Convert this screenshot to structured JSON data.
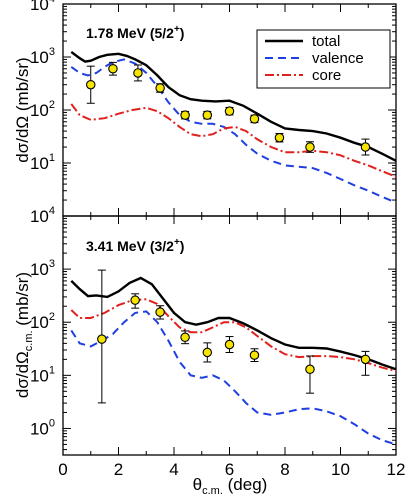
{
  "figure": {
    "x_axis_label": "θc.m. (deg)",
    "x_axis_label_main": "θ",
    "x_axis_label_sub": "c.m.",
    "x_axis_label_unit": " (deg)"
  },
  "legend": [
    {
      "label": "total",
      "color": "#000000",
      "dash": "solid"
    },
    {
      "label": "valence",
      "color": "#1f3fe0",
      "dash": "dashed"
    },
    {
      "label": "core",
      "color": "#e0201c",
      "dash": "dashdot"
    }
  ],
  "colors": {
    "total": "#000000",
    "valence": "#1f3fe0",
    "core": "#e0201c",
    "marker_fill": "#f5e400",
    "marker_edge": "#000000"
  },
  "chart_data": [
    {
      "type": "line",
      "panel": "top",
      "title": "1.78 MeV (5/2+)",
      "title_main": "1.78 MeV (5/2",
      "title_sup": "+",
      "title_close": ")",
      "ylabel": "dσ/dΩ (mb/sr)",
      "ylabel_main": "dσ/dΩ",
      "ylabel_sub": "",
      "ylabel_unit": " (mb/sr)",
      "xlim": [
        0,
        12
      ],
      "ylim_log10": [
        0,
        4
      ],
      "yscale": "log",
      "x_ticks": [
        0,
        2,
        4,
        6,
        8,
        10,
        12
      ],
      "y_ticks": [
        "10^0",
        "10^1",
        "10^2",
        "10^3",
        "10^4"
      ],
      "y_tick_labels_shown": [
        "10^1",
        "10^2",
        "10^3",
        "10^4"
      ],
      "legend_position": "top-right",
      "series": [
        {
          "name": "total",
          "x": [
            0.3,
            0.6,
            0.8,
            1.0,
            1.3,
            1.6,
            2.0,
            2.3,
            2.6,
            3.0,
            3.4,
            3.8,
            4.2,
            4.6,
            5.0,
            5.5,
            6.0,
            6.5,
            7.0,
            7.5,
            8.0,
            8.5,
            9.0,
            9.5,
            10.0,
            10.5,
            11.0,
            11.5,
            12.0
          ],
          "y": [
            1250,
            950,
            820,
            850,
            1000,
            1100,
            1150,
            1050,
            900,
            700,
            450,
            270,
            190,
            160,
            150,
            145,
            150,
            120,
            85,
            60,
            45,
            42,
            40,
            36,
            30,
            24,
            20,
            15,
            11
          ]
        },
        {
          "name": "valence",
          "x": [
            0.3,
            0.6,
            0.9,
            1.2,
            1.5,
            1.8,
            2.2,
            2.6,
            3.0,
            3.4,
            3.8,
            4.2,
            4.6,
            5.0,
            5.4,
            5.8,
            6.2,
            6.6,
            7.0,
            7.5,
            8.0,
            8.5,
            9.0,
            9.5,
            10.0,
            10.5,
            11.0,
            11.5,
            12.0
          ],
          "y": [
            650,
            500,
            450,
            500,
            650,
            800,
            900,
            750,
            500,
            280,
            140,
            80,
            60,
            55,
            55,
            48,
            35,
            22,
            15,
            11,
            9,
            8.5,
            8,
            6.5,
            5,
            3.8,
            3,
            2.3,
            1.8
          ]
        },
        {
          "name": "core",
          "x": [
            0.3,
            0.6,
            1.0,
            1.5,
            2.0,
            2.5,
            3.0,
            3.4,
            3.8,
            4.2,
            4.6,
            5.0,
            5.4,
            5.8,
            6.2,
            6.6,
            7.0,
            7.5,
            8.0,
            8.5,
            9.0,
            9.5,
            10.0,
            10.5,
            11.0,
            11.5,
            12.0
          ],
          "y": [
            130,
            80,
            65,
            70,
            85,
            100,
            110,
            95,
            70,
            48,
            35,
            32,
            35,
            45,
            48,
            40,
            28,
            20,
            16,
            16,
            17,
            16,
            14,
            11,
            9,
            7,
            5.5
          ]
        },
        {
          "name": "data",
          "x": [
            1.0,
            1.8,
            2.7,
            3.5,
            4.4,
            5.2,
            6.0,
            6.9,
            7.8,
            8.9,
            10.9
          ],
          "y": [
            300,
            600,
            500,
            260,
            80,
            80,
            95,
            68,
            30,
            20,
            20
          ],
          "yerr": [
            0.35,
            0.12,
            0.15,
            0.08,
            0.07,
            0.07,
            0.07,
            0.07,
            0.08,
            0.1,
            0.15
          ]
        }
      ]
    },
    {
      "type": "line",
      "panel": "bottom",
      "title": "3.41 MeV (3/2+)",
      "title_main": "3.41 MeV (3/2",
      "title_sup": "+",
      "title_close": ")",
      "ylabel": "dσ/dΩc.m. (mb/sr)",
      "ylabel_main": "dσ/dΩ",
      "ylabel_sub": "c.m.",
      "ylabel_unit": " (mb/sr)",
      "xlim": [
        0,
        12
      ],
      "ylim_log10": [
        -0.5,
        4
      ],
      "yscale": "log",
      "x_ticks": [
        0,
        2,
        4,
        6,
        8,
        10,
        12
      ],
      "y_ticks": [
        "10^0",
        "10^1",
        "10^2",
        "10^3",
        "10^4"
      ],
      "y_tick_labels_shown": [
        "10^0",
        "10^1",
        "10^2",
        "10^3",
        "10^4"
      ],
      "series": [
        {
          "name": "total",
          "x": [
            0.3,
            0.6,
            0.9,
            1.2,
            1.6,
            2.0,
            2.4,
            2.8,
            3.2,
            3.6,
            4.0,
            4.4,
            4.8,
            5.2,
            5.6,
            6.0,
            6.5,
            7.0,
            7.5,
            8.0,
            8.5,
            9.0,
            9.5,
            10.0,
            10.5,
            11.0,
            11.5,
            12.0
          ],
          "y": [
            600,
            420,
            310,
            320,
            300,
            380,
            550,
            680,
            520,
            280,
            150,
            100,
            90,
            100,
            120,
            120,
            95,
            70,
            50,
            38,
            33,
            33,
            32,
            28,
            24,
            20,
            16,
            13
          ]
        },
        {
          "name": "valence",
          "x": [
            0.3,
            0.6,
            1.0,
            1.4,
            1.8,
            2.2,
            2.6,
            3.0,
            3.4,
            3.8,
            4.2,
            4.6,
            5.0,
            5.4,
            5.8,
            6.2,
            6.6,
            7.0,
            7.5,
            8.0,
            8.5,
            9.0,
            9.5,
            10.0,
            10.5,
            11.0,
            11.5,
            12.0
          ],
          "y": [
            70,
            40,
            35,
            45,
            60,
            100,
            150,
            160,
            100,
            45,
            18,
            10,
            9,
            10,
            8,
            5,
            3,
            2,
            1.8,
            2,
            2.3,
            2.4,
            2.1,
            1.7,
            1.2,
            0.8,
            0.6,
            0.5
          ]
        },
        {
          "name": "core",
          "x": [
            0.3,
            0.6,
            1.0,
            1.5,
            2.0,
            2.5,
            3.0,
            3.4,
            3.8,
            4.2,
            4.6,
            5.0,
            5.4,
            5.8,
            6.2,
            6.6,
            7.0,
            7.5,
            8.0,
            8.5,
            9.0,
            9.5,
            10.0,
            10.5,
            11.0,
            11.5,
            12.0
          ],
          "y": [
            170,
            120,
            120,
            150,
            210,
            260,
            270,
            220,
            130,
            80,
            65,
            65,
            80,
            100,
            100,
            80,
            55,
            35,
            25,
            22,
            23,
            23,
            22,
            20,
            17,
            14,
            12
          ]
        },
        {
          "name": "data",
          "x": [
            1.4,
            2.6,
            3.5,
            4.4,
            5.2,
            6.0,
            6.9,
            8.9,
            10.9
          ],
          "y": [
            48,
            260,
            155,
            52,
            27,
            38,
            24,
            13,
            20
          ],
          "yerr_low": [
            1.2,
            0.15,
            0.13,
            0.12,
            0.18,
            0.15,
            0.12,
            0.45,
            0.3
          ],
          "yerr_high": [
            1.3,
            0.12,
            0.12,
            0.12,
            0.18,
            0.15,
            0.12,
            0.25,
            0.15
          ]
        }
      ]
    }
  ]
}
